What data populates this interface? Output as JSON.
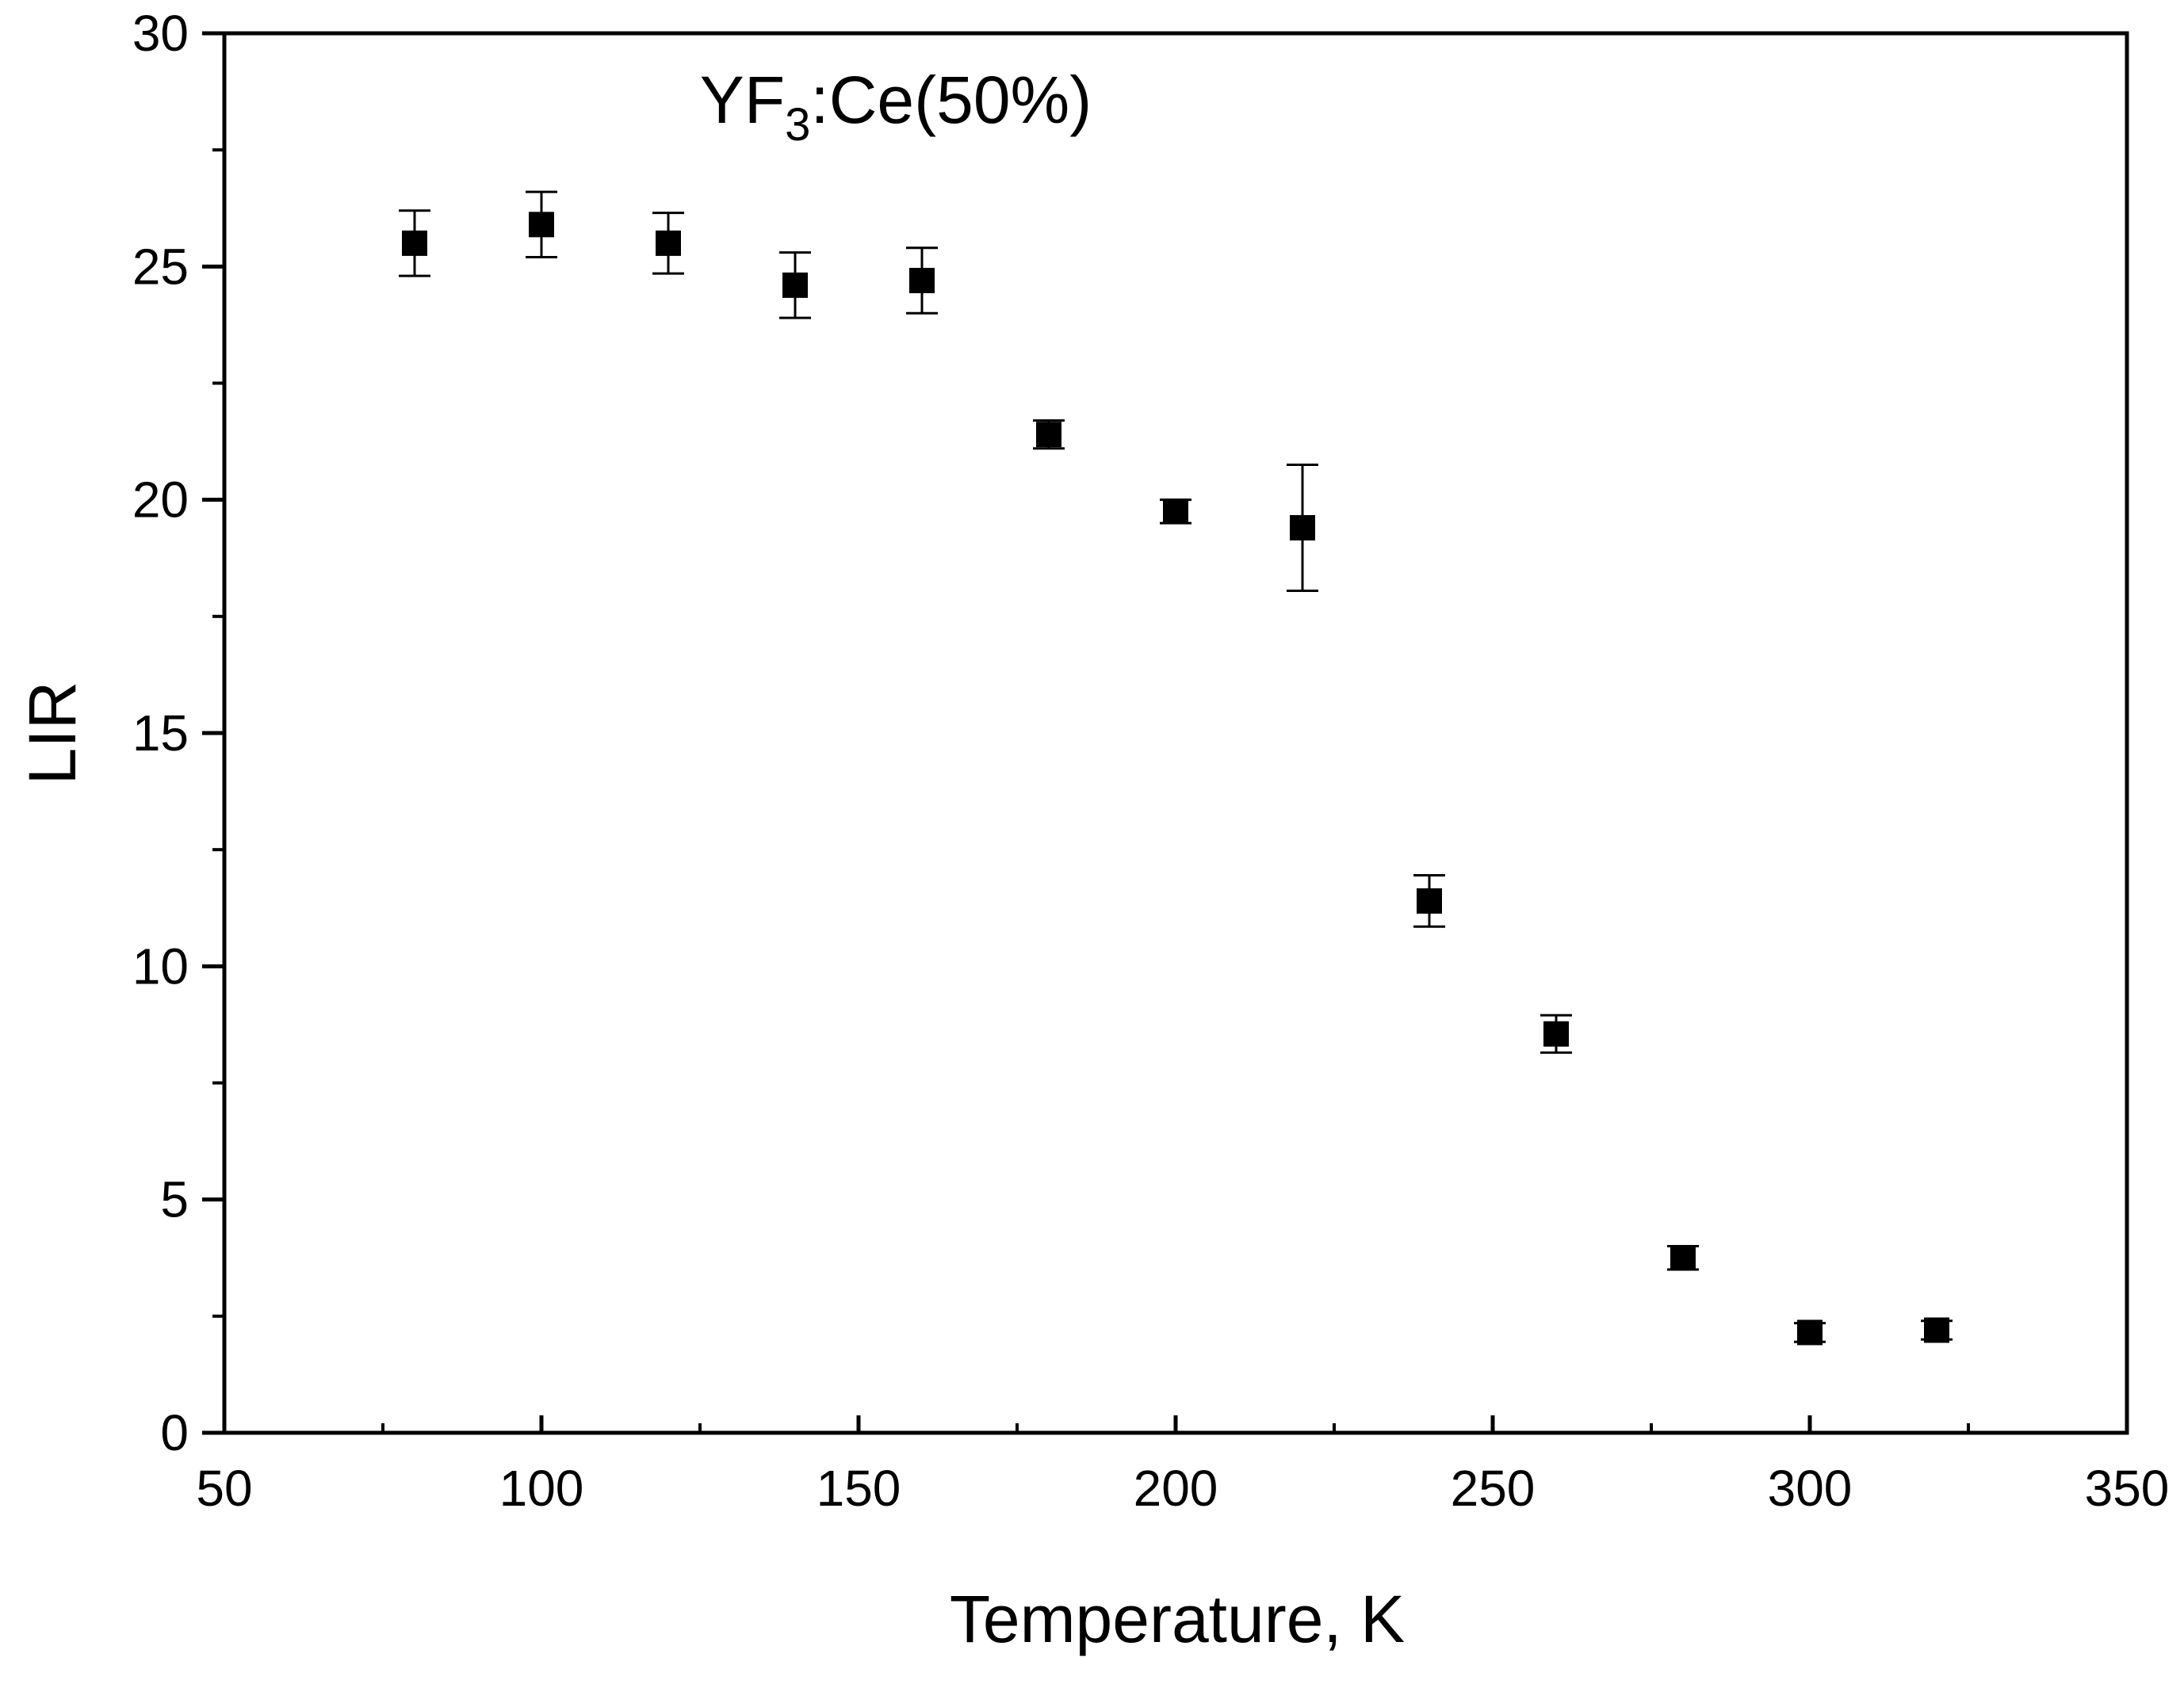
{
  "chart_data": {
    "type": "scatter",
    "title": {
      "prefix": "YF",
      "subscript": "3",
      "suffix": ":Ce(50%)"
    },
    "xlabel": "Temperature, K",
    "ylabel": "LIR",
    "xlim": [
      50,
      350
    ],
    "ylim": [
      0,
      30
    ],
    "x_major_ticks": [
      50,
      100,
      150,
      200,
      250,
      300,
      350
    ],
    "x_minor_ticks": [
      75,
      125,
      175,
      225,
      275,
      325
    ],
    "y_major_ticks": [
      0,
      5,
      10,
      15,
      20,
      25,
      30
    ],
    "y_minor_ticks": [
      2.5,
      7.5,
      12.5,
      17.5,
      22.5,
      27.5
    ],
    "x_tick_labels": [
      "50",
      "100",
      "150",
      "200",
      "250",
      "300",
      "350"
    ],
    "y_tick_labels": [
      "0",
      "5",
      "10",
      "15",
      "20",
      "25",
      "30"
    ],
    "marker": "square",
    "marker_color": "#000000",
    "series": [
      {
        "name": "YF3:Ce(50%)",
        "x": [
          80,
          100,
          120,
          140,
          160,
          180,
          200,
          220,
          240,
          260,
          280,
          300,
          320
        ],
        "y": [
          25.5,
          25.9,
          25.5,
          24.6,
          24.7,
          21.4,
          19.75,
          19.4,
          11.4,
          8.55,
          3.75,
          2.15,
          2.2
        ],
        "yerr": [
          0.7,
          0.7,
          0.65,
          0.7,
          0.7,
          0.3,
          0.25,
          1.35,
          0.55,
          0.4,
          0.25,
          0.2,
          0.2
        ]
      }
    ]
  }
}
